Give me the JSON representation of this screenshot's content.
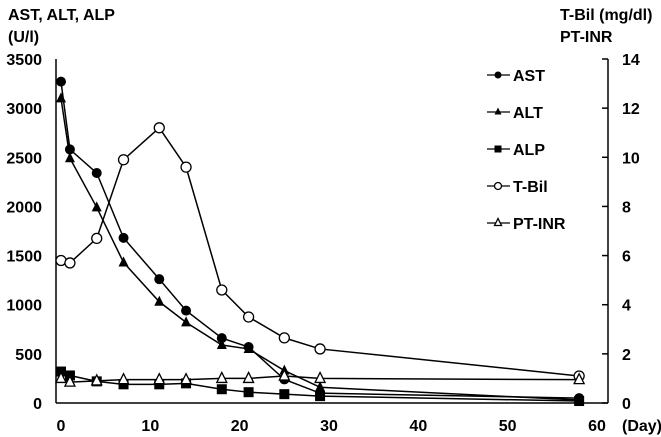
{
  "chart_data": {
    "type": "line",
    "title": "",
    "left_axis": {
      "label_line1": "AST, ALT, ALP",
      "label_line2": "(U/l)",
      "ylim": [
        0,
        3500
      ],
      "ticks": [
        0,
        500,
        1000,
        1500,
        2000,
        2500,
        3000,
        3500
      ]
    },
    "right_axis": {
      "label_line1": "T-Bil (mg/dl)",
      "label_line2": "PT-INR",
      "ylim": [
        0,
        14
      ],
      "ticks": [
        0,
        2,
        4,
        6,
        8,
        10,
        12,
        14
      ]
    },
    "x_axis": {
      "label": "(Day)",
      "xlim": [
        0,
        60
      ],
      "ticks": [
        0,
        10,
        20,
        30,
        40,
        50,
        60
      ]
    },
    "grid": false,
    "legend_position": "upper-right",
    "x": [
      0,
      1,
      4,
      7,
      11,
      14,
      18,
      21,
      25,
      29,
      58
    ],
    "series": [
      {
        "name": "AST",
        "axis": "left",
        "marker": "filled-circle",
        "values": [
          3270,
          2580,
          2340,
          1680,
          1260,
          940,
          660,
          570,
          240,
          100,
          50
        ]
      },
      {
        "name": "ALT",
        "axis": "left",
        "marker": "filled-triangle",
        "values": [
          3100,
          2490,
          1990,
          1430,
          1030,
          820,
          590,
          550,
          330,
          160,
          30
        ]
      },
      {
        "name": "ALP",
        "axis": "left",
        "marker": "filled-square",
        "values": [
          320,
          280,
          220,
          190,
          190,
          200,
          140,
          110,
          90,
          70,
          20
        ]
      },
      {
        "name": "T-Bil",
        "axis": "right",
        "marker": "open-circle",
        "values": [
          5.8,
          5.7,
          6.7,
          9.9,
          11.2,
          9.6,
          4.6,
          3.5,
          2.65,
          2.2,
          1.1
        ]
      },
      {
        "name": "PT-INR",
        "axis": "right",
        "marker": "open-triangle",
        "values": [
          1.0,
          0.85,
          0.9,
          0.95,
          0.95,
          0.95,
          1.0,
          1.0,
          1.1,
          1.0,
          0.95
        ]
      }
    ]
  }
}
